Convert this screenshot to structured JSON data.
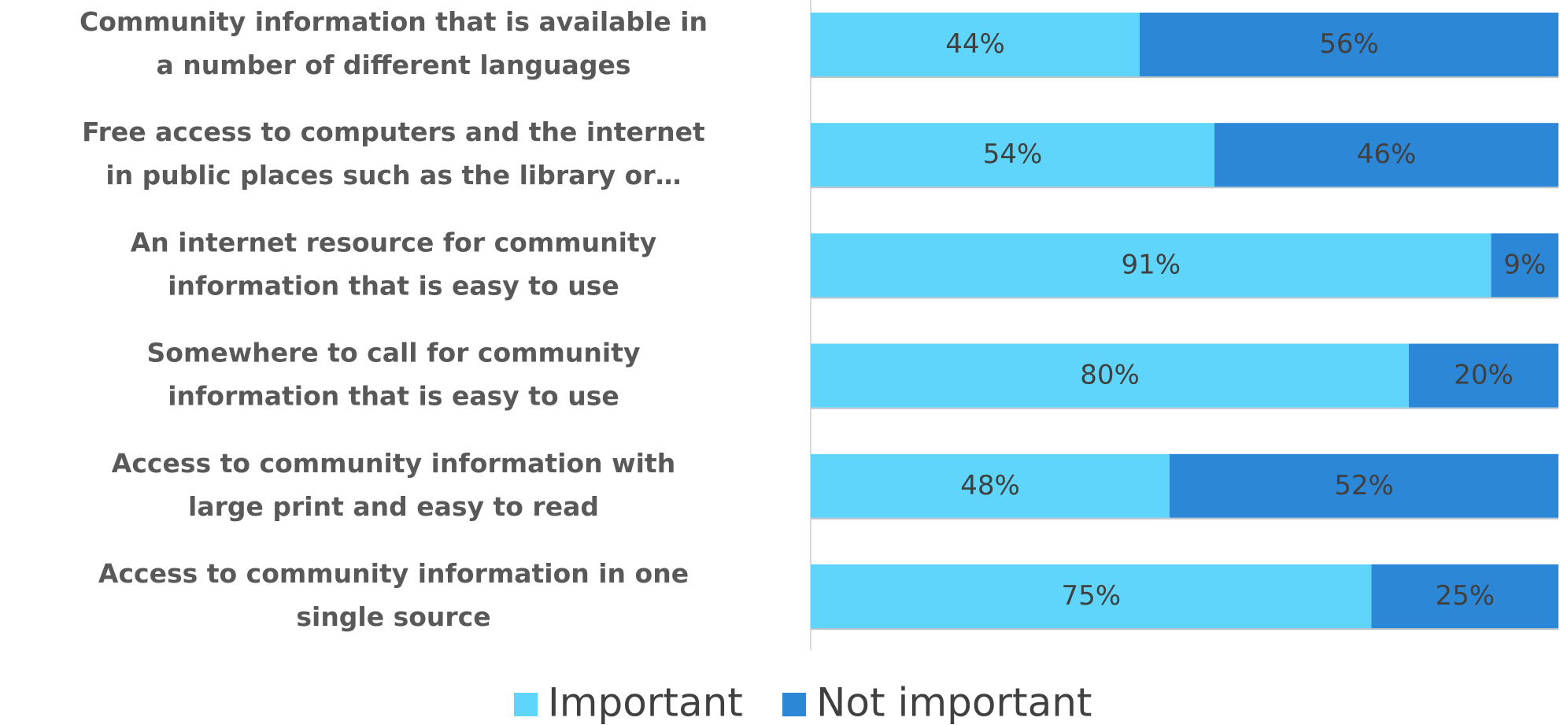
{
  "chart_data": {
    "type": "stacked_barh",
    "categories": [
      [
        "Community information that is available in",
        "a number of different languages"
      ],
      [
        "Free access to computers and the internet",
        "in public places such as the library or…"
      ],
      [
        "An internet resource for community",
        "information that is easy to use"
      ],
      [
        "Somewhere to call for community",
        "information that is easy to use"
      ],
      [
        "Access to community information with",
        "large print and easy to read"
      ],
      [
        "Access to community information in one",
        "single source"
      ]
    ],
    "series": [
      {
        "name": "Important",
        "color": "#5fd5fb",
        "values": [
          44,
          54,
          91,
          80,
          48,
          75
        ],
        "value_labels": [
          "44%",
          "54%",
          "91%",
          "80%",
          "48%",
          "75%"
        ]
      },
      {
        "name": "Not important",
        "color": "#2d87d7",
        "values": [
          56,
          46,
          9,
          20,
          52,
          25
        ],
        "value_labels": [
          "56%",
          "46%",
          "9%",
          "20%",
          "52%",
          "25%"
        ]
      }
    ],
    "xlim": [
      0,
      100
    ],
    "legend": "bottom"
  }
}
